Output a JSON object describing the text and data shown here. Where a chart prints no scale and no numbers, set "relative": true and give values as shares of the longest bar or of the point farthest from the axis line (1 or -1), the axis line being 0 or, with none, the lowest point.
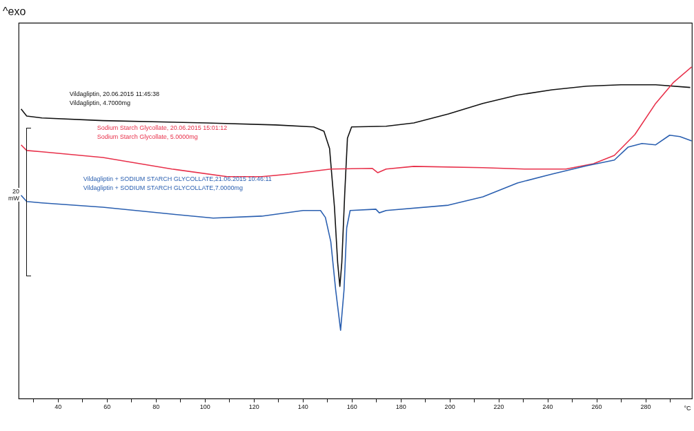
{
  "chart_data": {
    "type": "line",
    "relative": true,
    "xlabel": "°C",
    "xlim": [
      24,
      299
    ],
    "xticks": [
      {
        "value": 30,
        "label": null
      },
      40,
      {
        "value": 50,
        "label": null
      },
      60,
      {
        "value": 70,
        "label": null
      },
      80,
      {
        "value": 90,
        "label": null
      },
      100,
      {
        "value": 110,
        "label": null
      },
      120,
      {
        "value": 130,
        "label": null
      },
      140,
      {
        "value": 150,
        "label": null
      },
      160,
      {
        "value": 170,
        "label": null
      },
      180,
      {
        "value": 190,
        "label": null
      },
      200,
      {
        "value": 210,
        "label": null
      },
      220,
      {
        "value": 230,
        "label": null
      },
      240,
      {
        "value": 250,
        "label": null
      },
      260,
      {
        "value": 270,
        "label": null
      },
      280,
      {
        "value": 290,
        "label": null
      }
    ],
    "grid": false,
    "legend": false,
    "series": [
      {
        "name": "Vildagliptin, 20.06.2015 11:45:38",
        "color": "#111111",
        "x": [
          25,
          27.3,
          33.5,
          58.4,
          100.7,
          128.9,
          144.5,
          148.7,
          151,
          153,
          154.3,
          155.2,
          156,
          157.2,
          158.3,
          160,
          174.1,
          185.4,
          199.5,
          213.6,
          227.7,
          241.9,
          256,
          270,
          284.2,
          298.3
        ],
        "values": [
          0.873,
          0.852,
          0.846,
          0.838,
          0.831,
          0.825,
          0.819,
          0.806,
          0.754,
          0.577,
          0.41,
          0.338,
          0.41,
          0.619,
          0.785,
          0.819,
          0.821,
          0.831,
          0.858,
          0.89,
          0.915,
          0.931,
          0.942,
          0.946,
          0.946,
          0.938
        ]
      },
      {
        "name": "Sodium Starch Glycollate, 20.06.2015 15:01:12",
        "color": "#e8304a",
        "x": [
          25,
          27.3,
          33.5,
          58.4,
          86.6,
          109.2,
          123.3,
          134.6,
          151.5,
          168.5,
          170.7,
          174.1,
          185.4,
          213.6,
          230.6,
          247.5,
          258.8,
          267.3,
          275.7,
          284.2,
          291.3,
          298.9
        ],
        "values": [
          0.765,
          0.748,
          0.744,
          0.727,
          0.692,
          0.669,
          0.669,
          0.677,
          0.692,
          0.694,
          0.681,
          0.692,
          0.7,
          0.696,
          0.692,
          0.692,
          0.708,
          0.733,
          0.796,
          0.89,
          0.952,
          1.0
        ]
      },
      {
        "name": "Vildagliptin + SODIUM STARCH GLYCOLLATE,21.06.2015 10:46:11",
        "color": "#2a5fb0",
        "x": [
          25,
          27.3,
          33.5,
          58.4,
          86.6,
          103.5,
          123.3,
          140.2,
          147.3,
          149.3,
          151.5,
          153.5,
          155.5,
          156.9,
          158,
          159.4,
          169.9,
          171.3,
          174.1,
          199.5,
          213.6,
          227.7,
          241.9,
          256,
          267.3,
          272.9,
          278.6,
          284.2,
          289.9,
          294.1,
          298.9
        ],
        "values": [
          0.613,
          0.594,
          0.59,
          0.577,
          0.556,
          0.544,
          0.55,
          0.567,
          0.567,
          0.546,
          0.473,
          0.327,
          0.206,
          0.327,
          0.515,
          0.567,
          0.571,
          0.56,
          0.567,
          0.583,
          0.608,
          0.65,
          0.677,
          0.702,
          0.719,
          0.758,
          0.769,
          0.765,
          0.794,
          0.79,
          0.777
        ]
      }
    ],
    "annotations": [
      "Vildagliptin, 4.7000mg",
      "Sodium Starch Glycollate, 5.0000mg",
      "Vildagliptin + SODIUM STARCH GLYCOLLATE,7.0000mg",
      "^exo",
      "20 mW"
    ]
  }
}
